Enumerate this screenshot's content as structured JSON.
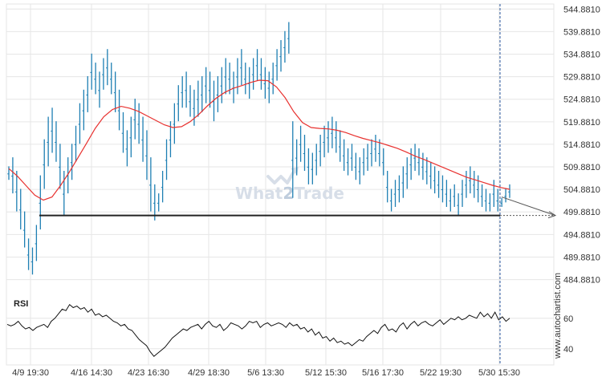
{
  "chart_data": [
    {
      "type": "candlestick",
      "title": "",
      "xlabel": "",
      "ylabel": "",
      "ylim": [
        480,
        546
      ],
      "x_ticks": [
        "4/9 19:30",
        "4/16 14:30",
        "4/23 16:30",
        "4/29 18:30",
        "5/6 13:30",
        "5/12 15:30",
        "5/16 17:30",
        "5/22 19:30",
        "5/30 15:30"
      ],
      "y_ticks": [
        "544.8810",
        "539.8810",
        "534.8810",
        "529.8810",
        "524.8810",
        "519.8810",
        "514.8810",
        "509.8810",
        "504.8810",
        "499.8810",
        "494.8810",
        "489.8810",
        "484.8810"
      ],
      "y_tick_values": [
        544.881,
        539.881,
        534.881,
        529.881,
        524.881,
        519.881,
        514.881,
        509.881,
        504.881,
        499.881,
        494.881,
        489.881,
        484.881
      ],
      "grid": true,
      "colors": {
        "bar": "#1e7fb3",
        "ma": "#e8312f",
        "support": "#222222",
        "projection": "#555555"
      },
      "price_bars": [
        [
          510,
          507
        ],
        [
          512,
          504
        ],
        [
          509,
          500
        ],
        [
          505,
          496
        ],
        [
          500,
          492
        ],
        [
          494,
          487
        ],
        [
          492,
          486
        ],
        [
          497,
          489
        ],
        [
          508,
          496
        ],
        [
          516,
          505
        ],
        [
          521,
          510
        ],
        [
          523,
          513
        ],
        [
          520,
          511
        ],
        [
          515,
          505
        ],
        [
          509,
          499
        ],
        [
          512,
          504
        ],
        [
          515,
          507
        ],
        [
          519,
          511
        ],
        [
          524,
          515
        ],
        [
          527,
          518
        ],
        [
          530,
          522
        ],
        [
          535,
          527
        ],
        [
          533,
          526
        ],
        [
          531,
          523
        ],
        [
          534,
          527
        ],
        [
          536,
          528
        ],
        [
          533,
          526
        ],
        [
          531,
          522
        ],
        [
          527,
          518
        ],
        [
          522,
          513
        ],
        [
          518,
          510
        ],
        [
          521,
          512
        ],
        [
          525,
          516
        ],
        [
          524,
          515
        ],
        [
          521,
          511
        ],
        [
          518,
          507
        ],
        [
          512,
          500
        ],
        [
          506,
          498
        ],
        [
          504,
          500
        ],
        [
          509,
          502
        ],
        [
          516,
          507
        ],
        [
          520,
          512
        ],
        [
          524,
          515
        ],
        [
          528,
          520
        ],
        [
          530,
          523
        ],
        [
          531,
          523
        ],
        [
          528,
          521
        ],
        [
          527,
          519
        ],
        [
          529,
          521
        ],
        [
          530,
          522
        ],
        [
          532,
          524
        ],
        [
          531,
          523
        ],
        [
          529,
          520
        ],
        [
          530,
          522
        ],
        [
          532,
          524
        ],
        [
          534,
          526
        ],
        [
          533,
          526
        ],
        [
          531,
          524
        ],
        [
          534,
          526
        ],
        [
          536,
          528
        ],
        [
          533,
          526
        ],
        [
          532,
          525
        ],
        [
          534,
          527
        ],
        [
          536,
          529
        ],
        [
          534,
          527
        ],
        [
          532,
          525
        ],
        [
          531,
          524
        ],
        [
          533,
          526
        ],
        [
          536,
          529
        ],
        [
          538,
          531
        ],
        [
          540,
          533
        ],
        [
          542,
          535
        ],
        [
          520,
          503
        ],
        [
          516,
          508
        ],
        [
          519,
          511
        ],
        [
          517,
          509
        ],
        [
          514,
          506
        ],
        [
          513,
          506
        ],
        [
          515,
          508
        ],
        [
          517,
          510
        ],
        [
          519,
          512
        ],
        [
          520,
          513
        ],
        [
          521,
          514
        ],
        [
          520,
          513
        ],
        [
          518,
          511
        ],
        [
          516,
          509
        ],
        [
          514,
          508
        ],
        [
          515,
          509
        ],
        [
          513,
          507
        ],
        [
          512,
          506
        ],
        [
          514,
          508
        ],
        [
          515,
          509
        ],
        [
          516,
          510
        ],
        [
          517,
          511
        ],
        [
          516,
          510
        ],
        [
          514,
          508
        ],
        [
          509,
          502
        ],
        [
          505,
          500
        ],
        [
          507,
          501
        ],
        [
          508,
          502
        ],
        [
          510,
          503
        ],
        [
          512,
          505
        ],
        [
          514,
          507
        ],
        [
          515,
          509
        ],
        [
          514,
          508
        ],
        [
          513,
          507
        ],
        [
          512,
          506
        ],
        [
          511,
          505
        ],
        [
          510,
          504
        ],
        [
          509,
          503
        ],
        [
          508,
          502
        ],
        [
          507,
          501
        ],
        [
          505,
          500
        ],
        [
          506,
          501
        ],
        [
          504,
          499
        ],
        [
          507,
          501
        ],
        [
          509,
          503
        ],
        [
          510,
          504
        ],
        [
          509,
          503
        ],
        [
          508,
          502
        ],
        [
          506,
          501
        ],
        [
          505,
          500
        ],
        [
          504,
          500
        ],
        [
          507,
          501
        ],
        [
          505,
          500
        ],
        [
          503,
          501
        ],
        [
          505,
          502
        ],
        [
          506,
          503
        ]
      ],
      "ma_values": [
        509.5,
        507.8,
        505.7,
        503.6,
        502.5,
        503.2,
        505.8,
        508.7,
        511.9,
        515.1,
        518.4,
        521.0,
        522.6,
        523.3,
        522.9,
        522.2,
        521.2,
        520.2,
        519.2,
        518.6,
        518.8,
        519.9,
        521.5,
        523.4,
        525.1,
        526.4,
        527.3,
        527.9,
        528.6,
        529.1,
        529.0,
        527.6,
        525.2,
        522.1,
        519.7,
        518.6,
        518.4,
        518.3,
        518.0,
        517.5,
        516.8,
        516.2,
        515.7,
        515.2,
        514.6,
        514.0,
        513.2,
        512.3,
        511.6,
        510.8,
        510.0,
        509.2,
        508.4,
        507.6,
        507.0,
        506.4,
        505.8,
        505.3,
        504.9
      ],
      "support_level": 499.1,
      "projection": {
        "from": 503.2,
        "to": 499.1
      }
    },
    {
      "type": "line",
      "title": "RSI",
      "ylim": [
        32,
        72
      ],
      "y_ticks": [
        "60",
        "40"
      ],
      "y_tick_values": [
        60,
        40
      ],
      "values": [
        56,
        55,
        56,
        58,
        55,
        53,
        54,
        52,
        54,
        55,
        56,
        54,
        58,
        60,
        63,
        66,
        65,
        69,
        67,
        68,
        66,
        67,
        64,
        66,
        62,
        63,
        61,
        62,
        60,
        58,
        57,
        55,
        56,
        53,
        52,
        49,
        46,
        44,
        42,
        38,
        35,
        37,
        39,
        41,
        44,
        47,
        49,
        51,
        53,
        52,
        54,
        55,
        56,
        53,
        56,
        58,
        55,
        54,
        56,
        52,
        54,
        57,
        56,
        55,
        53,
        55,
        58,
        57,
        58,
        54,
        56,
        57,
        55,
        56,
        57,
        56,
        54,
        57,
        55,
        56,
        53,
        54,
        51,
        53,
        49,
        51,
        47,
        48,
        45,
        47,
        44,
        45,
        43,
        44,
        42,
        44,
        46,
        45,
        48,
        50,
        52,
        50,
        54,
        56,
        52,
        53,
        51,
        55,
        57,
        53,
        56,
        58,
        55,
        57,
        58,
        56,
        55,
        57,
        59,
        56,
        58,
        60,
        59,
        61,
        59,
        60,
        62,
        61,
        60,
        64,
        61,
        63,
        60,
        64,
        59,
        61,
        58,
        60
      ]
    }
  ],
  "watermark": {
    "text_left": "What",
    "text_mid": "2",
    "text_right": "Trade"
  },
  "side_text": "www.autochartist.com"
}
